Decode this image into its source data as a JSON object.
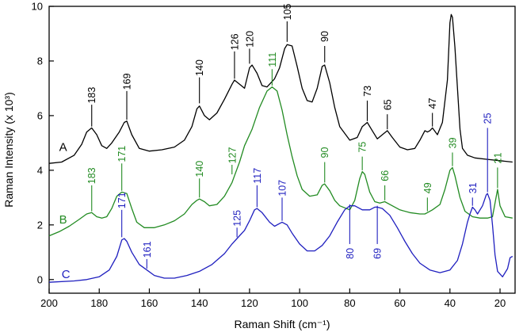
{
  "chart_data": {
    "type": "line",
    "xlabel": "Raman Shift (cm⁻¹)",
    "ylabel": "Raman Intensity (x 10³)",
    "xlim": [
      200,
      14
    ],
    "ylim": [
      -0.5,
      10
    ],
    "x_ticks": [
      200,
      180,
      160,
      140,
      120,
      100,
      80,
      60,
      40,
      20
    ],
    "y_ticks": [
      0,
      2,
      4,
      6,
      8,
      10
    ],
    "grid": false,
    "series": [
      {
        "name": "A",
        "color": "#000000",
        "label_pos": [
          196,
          4.7
        ],
        "points": [
          [
            200,
            4.25
          ],
          [
            195,
            4.3
          ],
          [
            190,
            4.55
          ],
          [
            187,
            4.95
          ],
          [
            185,
            5.4
          ],
          [
            183,
            5.55
          ],
          [
            181,
            5.3
          ],
          [
            179,
            4.9
          ],
          [
            177,
            4.8
          ],
          [
            175,
            5.0
          ],
          [
            172,
            5.4
          ],
          [
            170,
            5.75
          ],
          [
            169,
            5.8
          ],
          [
            167,
            5.3
          ],
          [
            164,
            4.8
          ],
          [
            160,
            4.7
          ],
          [
            155,
            4.75
          ],
          [
            150,
            4.85
          ],
          [
            146,
            5.1
          ],
          [
            143,
            5.6
          ],
          [
            141,
            6.25
          ],
          [
            140,
            6.35
          ],
          [
            138,
            6.0
          ],
          [
            136,
            5.85
          ],
          [
            133,
            6.1
          ],
          [
            130,
            6.6
          ],
          [
            127,
            7.15
          ],
          [
            126,
            7.3
          ],
          [
            124,
            7.15
          ],
          [
            122,
            7.0
          ],
          [
            120,
            7.75
          ],
          [
            119,
            7.85
          ],
          [
            117,
            7.55
          ],
          [
            115,
            7.1
          ],
          [
            113,
            7.05
          ],
          [
            110,
            7.35
          ],
          [
            108,
            7.75
          ],
          [
            106,
            8.45
          ],
          [
            105,
            8.6
          ],
          [
            103,
            8.55
          ],
          [
            101,
            7.8
          ],
          [
            99,
            7.0
          ],
          [
            97,
            6.55
          ],
          [
            95,
            6.5
          ],
          [
            93,
            7.0
          ],
          [
            91,
            7.8
          ],
          [
            90,
            7.85
          ],
          [
            88,
            7.2
          ],
          [
            86,
            6.3
          ],
          [
            84,
            5.6
          ],
          [
            80,
            5.1
          ],
          [
            77,
            5.2
          ],
          [
            75,
            5.6
          ],
          [
            73,
            5.75
          ],
          [
            71,
            5.45
          ],
          [
            69,
            5.15
          ],
          [
            67,
            5.3
          ],
          [
            65,
            5.45
          ],
          [
            63,
            5.2
          ],
          [
            60,
            4.85
          ],
          [
            57,
            4.75
          ],
          [
            54,
            4.8
          ],
          [
            52,
            5.1
          ],
          [
            50,
            5.45
          ],
          [
            49,
            5.4
          ],
          [
            48,
            5.45
          ],
          [
            47,
            5.55
          ],
          [
            45,
            5.3
          ],
          [
            43,
            5.75
          ],
          [
            41,
            7.3
          ],
          [
            40,
            9.4
          ],
          [
            39.5,
            9.7
          ],
          [
            39,
            9.6
          ],
          [
            38,
            8.5
          ],
          [
            37,
            7.0
          ],
          [
            36,
            5.5
          ],
          [
            35,
            4.8
          ],
          [
            33,
            4.55
          ],
          [
            30,
            4.45
          ],
          [
            25,
            4.4
          ],
          [
            20,
            4.35
          ],
          [
            15,
            4.3
          ]
        ]
      },
      {
        "name": "B",
        "color": "#228b22",
        "label_pos": [
          196,
          2.05
        ],
        "points": [
          [
            200,
            1.6
          ],
          [
            196,
            1.75
          ],
          [
            192,
            1.95
          ],
          [
            188,
            2.2
          ],
          [
            185,
            2.4
          ],
          [
            183,
            2.45
          ],
          [
            181,
            2.3
          ],
          [
            179,
            2.25
          ],
          [
            177,
            2.3
          ],
          [
            175,
            2.6
          ],
          [
            173,
            3.05
          ],
          [
            171,
            3.2
          ],
          [
            169,
            3.15
          ],
          [
            167,
            2.6
          ],
          [
            165,
            2.1
          ],
          [
            162,
            1.9
          ],
          [
            158,
            1.9
          ],
          [
            154,
            2.0
          ],
          [
            150,
            2.15
          ],
          [
            146,
            2.4
          ],
          [
            143,
            2.75
          ],
          [
            141,
            2.9
          ],
          [
            140,
            2.95
          ],
          [
            138,
            2.85
          ],
          [
            136,
            2.7
          ],
          [
            133,
            2.75
          ],
          [
            130,
            3.05
          ],
          [
            127,
            3.55
          ],
          [
            126,
            3.8
          ],
          [
            124,
            4.3
          ],
          [
            122,
            4.9
          ],
          [
            119,
            5.5
          ],
          [
            116,
            6.3
          ],
          [
            113,
            6.9
          ],
          [
            111,
            7.05
          ],
          [
            109,
            6.9
          ],
          [
            107,
            6.2
          ],
          [
            105,
            5.3
          ],
          [
            103,
            4.5
          ],
          [
            101,
            3.8
          ],
          [
            99,
            3.3
          ],
          [
            96,
            3.05
          ],
          [
            93,
            3.1
          ],
          [
            91,
            3.45
          ],
          [
            90,
            3.5
          ],
          [
            88,
            3.25
          ],
          [
            86,
            2.9
          ],
          [
            84,
            2.7
          ],
          [
            80,
            2.55
          ],
          [
            78,
            2.9
          ],
          [
            76,
            3.7
          ],
          [
            75,
            3.95
          ],
          [
            74,
            3.85
          ],
          [
            72,
            3.2
          ],
          [
            70,
            2.85
          ],
          [
            68,
            2.8
          ],
          [
            66,
            2.85
          ],
          [
            63,
            2.7
          ],
          [
            60,
            2.55
          ],
          [
            56,
            2.45
          ],
          [
            52,
            2.4
          ],
          [
            50,
            2.4
          ],
          [
            49,
            2.45
          ],
          [
            47,
            2.55
          ],
          [
            44,
            2.75
          ],
          [
            42,
            3.3
          ],
          [
            40,
            4.0
          ],
          [
            39,
            4.1
          ],
          [
            38,
            3.8
          ],
          [
            36,
            3.0
          ],
          [
            34,
            2.5
          ],
          [
            31,
            2.3
          ],
          [
            28,
            2.25
          ],
          [
            25,
            2.25
          ],
          [
            23,
            2.3
          ],
          [
            22,
            2.8
          ],
          [
            21,
            3.3
          ],
          [
            20,
            2.7
          ],
          [
            18,
            2.3
          ],
          [
            15,
            2.25
          ]
        ]
      },
      {
        "name": "C",
        "color": "#1f1fbf",
        "label_pos": [
          195,
          0.05
        ],
        "points": [
          [
            200,
            -0.1
          ],
          [
            190,
            -0.05
          ],
          [
            185,
            0.0
          ],
          [
            180,
            0.1
          ],
          [
            176,
            0.35
          ],
          [
            173,
            0.85
          ],
          [
            171,
            1.45
          ],
          [
            170,
            1.5
          ],
          [
            169,
            1.4
          ],
          [
            167,
            1.0
          ],
          [
            164,
            0.55
          ],
          [
            161,
            0.35
          ],
          [
            158,
            0.15
          ],
          [
            154,
            0.05
          ],
          [
            150,
            0.05
          ],
          [
            145,
            0.15
          ],
          [
            140,
            0.3
          ],
          [
            135,
            0.55
          ],
          [
            130,
            0.95
          ],
          [
            127,
            1.3
          ],
          [
            125,
            1.5
          ],
          [
            122,
            1.8
          ],
          [
            120,
            2.15
          ],
          [
            118,
            2.55
          ],
          [
            117,
            2.6
          ],
          [
            115,
            2.45
          ],
          [
            112,
            2.1
          ],
          [
            110,
            1.95
          ],
          [
            108,
            2.05
          ],
          [
            107,
            2.1
          ],
          [
            105,
            2.0
          ],
          [
            103,
            1.7
          ],
          [
            100,
            1.3
          ],
          [
            97,
            1.05
          ],
          [
            94,
            1.05
          ],
          [
            91,
            1.25
          ],
          [
            88,
            1.6
          ],
          [
            85,
            2.1
          ],
          [
            82,
            2.55
          ],
          [
            80,
            2.7
          ],
          [
            78,
            2.7
          ],
          [
            75,
            2.55
          ],
          [
            72,
            2.55
          ],
          [
            70,
            2.65
          ],
          [
            69,
            2.65
          ],
          [
            67,
            2.6
          ],
          [
            64,
            2.35
          ],
          [
            61,
            1.9
          ],
          [
            58,
            1.4
          ],
          [
            55,
            0.95
          ],
          [
            52,
            0.6
          ],
          [
            48,
            0.35
          ],
          [
            44,
            0.25
          ],
          [
            40,
            0.35
          ],
          [
            37,
            0.7
          ],
          [
            35,
            1.3
          ],
          [
            33,
            2.1
          ],
          [
            32,
            2.4
          ],
          [
            31,
            2.65
          ],
          [
            30,
            2.55
          ],
          [
            29,
            2.4
          ],
          [
            27,
            2.7
          ],
          [
            25.5,
            3.1
          ],
          [
            25,
            3.15
          ],
          [
            24,
            2.9
          ],
          [
            23,
            2.0
          ],
          [
            22,
            0.9
          ],
          [
            21,
            0.3
          ],
          [
            19,
            0.1
          ],
          [
            17,
            0.4
          ],
          [
            16,
            0.8
          ],
          [
            15,
            0.85
          ]
        ]
      }
    ],
    "annotations": [
      {
        "text": "183",
        "series": "A",
        "x": 183,
        "y_tip": 5.6,
        "y_base": 6.4
      },
      {
        "text": "169",
        "series": "A",
        "x": 169,
        "y_tip": 5.85,
        "y_base": 6.9
      },
      {
        "text": "140",
        "series": "A",
        "x": 140,
        "y_tip": 6.45,
        "y_base": 7.4
      },
      {
        "text": "126",
        "series": "A",
        "x": 126,
        "y_tip": 7.35,
        "y_base": 8.35
      },
      {
        "text": "120",
        "series": "A",
        "x": 120,
        "y_tip": 7.9,
        "y_base": 8.45
      },
      {
        "text": "105",
        "series": "A",
        "x": 105,
        "y_tip": 8.7,
        "y_base": 9.45
      },
      {
        "text": "90",
        "series": "A",
        "x": 90,
        "y_tip": 7.95,
        "y_base": 8.55
      },
      {
        "text": "73",
        "series": "A",
        "x": 73,
        "y_tip": 5.8,
        "y_base": 6.55
      },
      {
        "text": "65",
        "series": "A",
        "x": 65,
        "y_tip": 5.5,
        "y_base": 6.05
      },
      {
        "text": "47",
        "series": "A",
        "x": 47,
        "y_tip": 5.6,
        "y_base": 6.1
      },
      {
        "text": "183",
        "series": "B",
        "x": 183,
        "y_tip": 2.5,
        "y_base": 3.45
      },
      {
        "text": "171",
        "series": "B",
        "x": 171,
        "y_tip": 3.25,
        "y_base": 4.25
      },
      {
        "text": "140",
        "series": "B",
        "x": 140,
        "y_tip": 3.0,
        "y_base": 3.7
      },
      {
        "text": "127",
        "series": "B",
        "x": 127,
        "y_tip": 3.85,
        "y_base": 4.2
      },
      {
        "text": "111",
        "series": "B",
        "x": 111,
        "y_tip": 7.1,
        "y_base": 7.7
      },
      {
        "text": "90",
        "series": "B",
        "x": 90,
        "y_tip": 3.55,
        "y_base": 4.3
      },
      {
        "text": "75",
        "series": "B",
        "x": 75,
        "y_tip": 4.0,
        "y_base": 4.5
      },
      {
        "text": "66",
        "series": "B",
        "x": 66,
        "y_tip": 2.9,
        "y_base": 3.45
      },
      {
        "text": "49",
        "series": "B",
        "x": 49,
        "y_tip": 2.5,
        "y_base": 3.0
      },
      {
        "text": "39",
        "series": "B",
        "x": 39,
        "y_tip": 4.15,
        "y_base": 4.65
      },
      {
        "text": "21",
        "series": "B",
        "x": 21,
        "y_tip": 3.35,
        "y_base": 4.1
      },
      {
        "text": "171",
        "series": "C",
        "x": 171,
        "y_tip": 1.55,
        "y_base": 2.55
      },
      {
        "text": "161",
        "series": "C",
        "x": 161,
        "y_tip": 0.4,
        "y_base": 0.75
      },
      {
        "text": "125",
        "series": "C",
        "x": 125,
        "y_tip": 1.55,
        "y_base": 1.9
      },
      {
        "text": "117",
        "series": "C",
        "x": 117,
        "y_tip": 2.65,
        "y_base": 3.45
      },
      {
        "text": "107",
        "series": "C",
        "x": 107,
        "y_tip": 2.15,
        "y_base": 3.0
      },
      {
        "text": "80",
        "series": "C",
        "x": 80,
        "y_tip": 2.75,
        "y_base": 1.3
      },
      {
        "text": "69",
        "series": "C",
        "x": 69,
        "y_tip": 2.7,
        "y_base": 1.3
      },
      {
        "text": "31",
        "series": "C",
        "x": 31,
        "y_tip": 2.7,
        "y_base": 3.0
      },
      {
        "text": "25",
        "series": "C",
        "x": 25,
        "y_tip": 3.2,
        "y_base": 5.55
      }
    ]
  }
}
